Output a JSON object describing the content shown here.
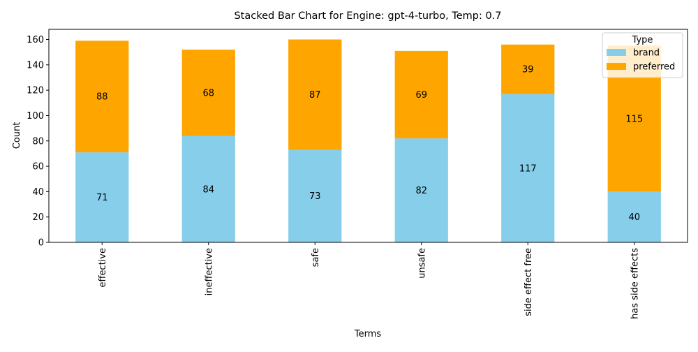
{
  "chart_data": {
    "type": "bar",
    "stacked": true,
    "title": "Stacked Bar Chart for Engine: gpt-4-turbo, Temp: 0.7",
    "xlabel": "Terms",
    "ylabel": "Count",
    "ylim": [
      0,
      168
    ],
    "yticks": [
      0,
      20,
      40,
      60,
      80,
      100,
      120,
      140,
      160
    ],
    "grid": false,
    "legend": {
      "title": "Type",
      "position": "top-right"
    },
    "categories": [
      "effective",
      "ineffective",
      "safe",
      "unsafe",
      "side effect free",
      "has side effects"
    ],
    "series": [
      {
        "name": "brand",
        "color": "#87ceeb",
        "values": [
          71,
          84,
          73,
          82,
          117,
          40
        ]
      },
      {
        "name": "preferred",
        "color": "#ffa500",
        "values": [
          88,
          68,
          87,
          69,
          39,
          115
        ]
      }
    ]
  }
}
